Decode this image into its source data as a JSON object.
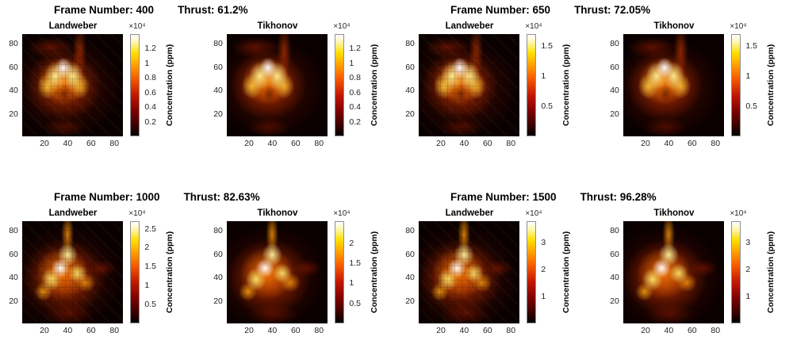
{
  "figure": {
    "colorbar_label": "Concentration (ppm)",
    "exponent_label": "×10⁴",
    "axis": {
      "x_ticks": [
        20,
        40,
        60,
        80
      ],
      "y_ticks": [
        20,
        40,
        60,
        80
      ]
    },
    "colormap_name": "hot",
    "colormap_colors": [
      "#000000",
      "#7c0000",
      "#c11700",
      "#f45800",
      "#ffa000",
      "#ffdf00",
      "#ffffff"
    ]
  },
  "quadrants": [
    {
      "frame_label": "Frame Number: 400",
      "thrust_label": "Thrust: 61.2%",
      "subplots": [
        {
          "title": "Landweber",
          "pattern": "chevron",
          "style": "blocky",
          "cb_max": 1.4,
          "cb_ticks": [
            0.2,
            0.4,
            0.6,
            0.8,
            1,
            1.2
          ]
        },
        {
          "title": "Tikhonov",
          "pattern": "chevron",
          "style": "smooth",
          "cb_max": 1.4,
          "cb_ticks": [
            0.2,
            0.4,
            0.6,
            0.8,
            1,
            1.2
          ]
        }
      ]
    },
    {
      "frame_label": "Frame Number: 650",
      "thrust_label": "Thrust: 72.05%",
      "subplots": [
        {
          "title": "Landweber",
          "pattern": "chevron",
          "style": "blocky",
          "cb_max": 1.7,
          "cb_ticks": [
            0.5,
            1,
            1.5
          ]
        },
        {
          "title": "Tikhonov",
          "pattern": "chevron",
          "style": "smooth",
          "cb_max": 1.7,
          "cb_ticks": [
            0.5,
            1,
            1.5
          ]
        }
      ]
    },
    {
      "frame_label": "Frame Number: 1000",
      "thrust_label": "Thrust: 82.63%",
      "subplots": [
        {
          "title": "Landweber",
          "pattern": "trident",
          "style": "blocky",
          "cb_max": 2.7,
          "cb_ticks": [
            0.5,
            1,
            1.5,
            2,
            2.5
          ]
        },
        {
          "title": "Tikhonov",
          "pattern": "trident",
          "style": "smooth",
          "cb_max": 2.55,
          "cb_ticks": [
            0.5,
            1,
            1.5,
            2
          ]
        }
      ]
    },
    {
      "frame_label": "Frame Number: 1500",
      "thrust_label": "Thrust: 96.28%",
      "subplots": [
        {
          "title": "Landweber",
          "pattern": "trident",
          "style": "blocky",
          "cb_max": 3.8,
          "cb_ticks": [
            1,
            2,
            3
          ]
        },
        {
          "title": "Tikhonov",
          "pattern": "trident",
          "style": "smooth",
          "cb_max": 3.8,
          "cb_ticks": [
            1,
            2,
            3
          ]
        }
      ]
    }
  ],
  "chart_data": [
    {
      "type": "heatmap",
      "frame_number": 400,
      "thrust_percent": 61.2,
      "method": "Landweber",
      "title": "Landweber",
      "x_ticks": [
        20,
        40,
        60,
        80
      ],
      "y_ticks": [
        20,
        40,
        60,
        80
      ],
      "x_range": [
        1,
        88
      ],
      "y_range": [
        1,
        88
      ],
      "colormap": "hot",
      "colorbar": {
        "label": "Concentration (ppm)",
        "scale_factor": 10000,
        "tick_values": [
          0.2,
          0.4,
          0.6,
          0.8,
          1.0,
          1.2
        ],
        "range": [
          0,
          1.4
        ]
      },
      "pattern": "bright white-yellow chevron (inverted-V) plume centered near x=40,y=45 on black background, blocky triangulated reconstruction with faint vertical red streak near x=57 to top edge"
    },
    {
      "type": "heatmap",
      "frame_number": 400,
      "thrust_percent": 61.2,
      "method": "Tikhonov",
      "title": "Tikhonov",
      "x_ticks": [
        20,
        40,
        60,
        80
      ],
      "y_ticks": [
        20,
        40,
        60,
        80
      ],
      "x_range": [
        1,
        88
      ],
      "y_range": [
        1,
        88
      ],
      "colormap": "hot",
      "colorbar": {
        "label": "Concentration (ppm)",
        "scale_factor": 10000,
        "tick_values": [
          0.2,
          0.4,
          0.6,
          0.8,
          1.0,
          1.2
        ],
        "range": [
          0,
          1.4
        ]
      },
      "pattern": "same chevron plume, smooth low-pass reconstruction"
    },
    {
      "type": "heatmap",
      "frame_number": 650,
      "thrust_percent": 72.05,
      "method": "Landweber",
      "title": "Landweber",
      "x_ticks": [
        20,
        40,
        60,
        80
      ],
      "y_ticks": [
        20,
        40,
        60,
        80
      ],
      "x_range": [
        1,
        88
      ],
      "y_range": [
        1,
        88
      ],
      "colormap": "hot",
      "colorbar": {
        "label": "Concentration (ppm)",
        "scale_factor": 10000,
        "tick_values": [
          0.5,
          1.0,
          1.5
        ],
        "range": [
          0,
          1.7
        ]
      },
      "pattern": "bright chevron plume, blocky reconstruction, vertical red streak to top edge"
    },
    {
      "type": "heatmap",
      "frame_number": 650,
      "thrust_percent": 72.05,
      "method": "Tikhonov",
      "title": "Tikhonov",
      "x_ticks": [
        20,
        40,
        60,
        80
      ],
      "y_ticks": [
        20,
        40,
        60,
        80
      ],
      "x_range": [
        1,
        88
      ],
      "y_range": [
        1,
        88
      ],
      "colormap": "hot",
      "colorbar": {
        "label": "Concentration (ppm)",
        "scale_factor": 10000,
        "tick_values": [
          0.5,
          1.0,
          1.5
        ],
        "range": [
          0,
          1.7
        ]
      },
      "pattern": "smooth chevron plume"
    },
    {
      "type": "heatmap",
      "frame_number": 1000,
      "thrust_percent": 82.63,
      "method": "Landweber",
      "title": "Landweber",
      "x_ticks": [
        20,
        40,
        60,
        80
      ],
      "y_ticks": [
        20,
        40,
        60,
        80
      ],
      "x_range": [
        1,
        88
      ],
      "y_range": [
        1,
        88
      ],
      "colormap": "hot",
      "colorbar": {
        "label": "Concentration (ppm)",
        "scale_factor": 10000,
        "tick_values": [
          0.5,
          1.0,
          1.5,
          2.0,
          2.5
        ],
        "range": [
          0,
          2.7
        ]
      },
      "pattern": "large Y/trident-shaped bright plume with stem rising to top edge, blocky reconstruction"
    },
    {
      "type": "heatmap",
      "frame_number": 1000,
      "thrust_percent": 82.63,
      "method": "Tikhonov",
      "title": "Tikhonov",
      "x_ticks": [
        20,
        40,
        60,
        80
      ],
      "y_ticks": [
        20,
        40,
        60,
        80
      ],
      "x_range": [
        1,
        88
      ],
      "y_range": [
        1,
        88
      ],
      "colormap": "hot",
      "colorbar": {
        "label": "Concentration (ppm)",
        "scale_factor": 10000,
        "tick_values": [
          0.5,
          1.0,
          1.5,
          2.0
        ],
        "range": [
          0,
          2.55
        ]
      },
      "pattern": "smooth Y/trident-shaped plume"
    },
    {
      "type": "heatmap",
      "frame_number": 1500,
      "thrust_percent": 96.28,
      "method": "Landweber",
      "title": "Landweber",
      "x_ticks": [
        20,
        40,
        60,
        80
      ],
      "y_ticks": [
        20,
        40,
        60,
        80
      ],
      "x_range": [
        1,
        88
      ],
      "y_range": [
        1,
        88
      ],
      "colormap": "hot",
      "colorbar": {
        "label": "Concentration (ppm)",
        "scale_factor": 10000,
        "tick_values": [
          1.0,
          2.0,
          3.0
        ],
        "range": [
          0,
          3.8
        ]
      },
      "pattern": "large bright trident plume with stem to top edge, blocky reconstruction"
    },
    {
      "type": "heatmap",
      "frame_number": 1500,
      "thrust_percent": 96.28,
      "method": "Tikhonov",
      "title": "Tikhonov",
      "x_ticks": [
        20,
        40,
        60,
        80
      ],
      "y_ticks": [
        20,
        40,
        60,
        80
      ],
      "x_range": [
        1,
        88
      ],
      "y_range": [
        1,
        88
      ],
      "colormap": "hot",
      "colorbar": {
        "label": "Concentration (ppm)",
        "scale_factor": 10000,
        "tick_values": [
          1.0,
          2.0,
          3.0
        ],
        "range": [
          0,
          3.8
        ]
      },
      "pattern": "smooth trident plume"
    }
  ]
}
